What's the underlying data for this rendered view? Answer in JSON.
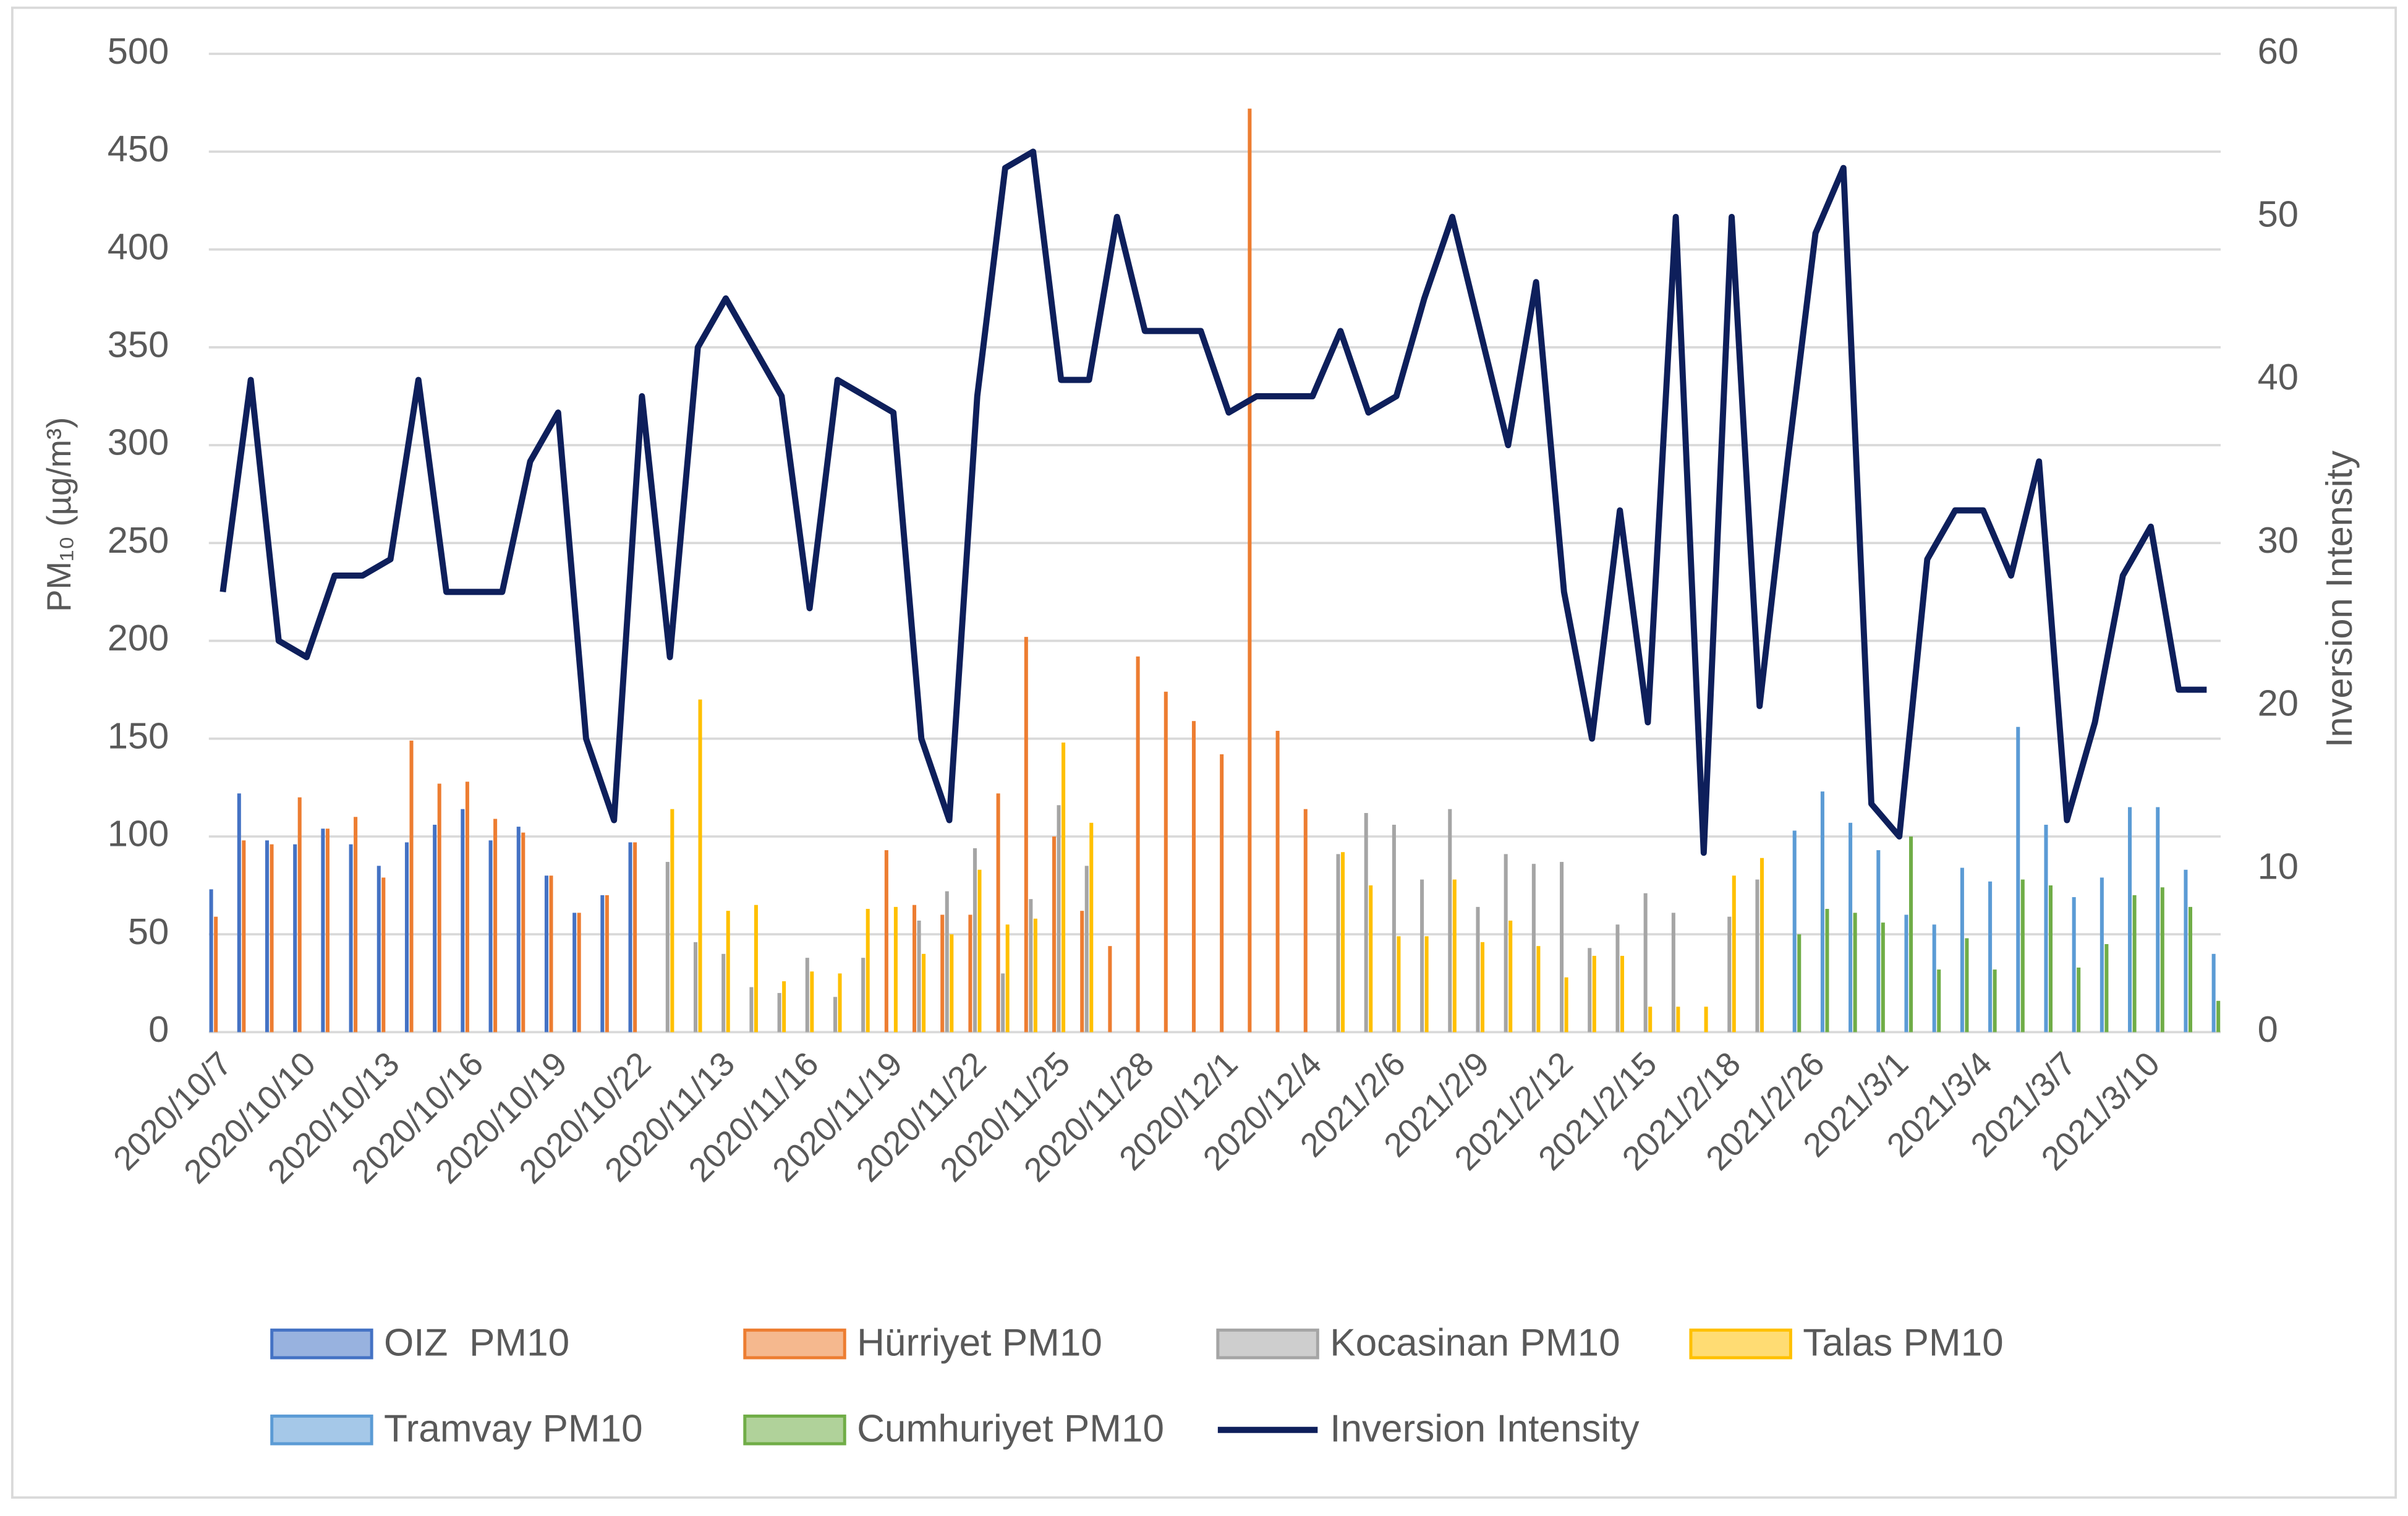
{
  "chart_data": {
    "type": "bar",
    "y_label": "PM₁₀ (µg/m³)",
    "y2_label": "Inversion Intensity",
    "categories": [
      "2020/10/7",
      null,
      null,
      "2020/10/10",
      null,
      null,
      "2020/10/13",
      null,
      null,
      "2020/10/16",
      null,
      null,
      "2020/10/19",
      null,
      null,
      "2020/10/22",
      null,
      null,
      "2020/11/13",
      null,
      null,
      "2020/11/16",
      null,
      null,
      "2020/11/19",
      null,
      null,
      "2020/11/22",
      null,
      null,
      "2020/11/25",
      null,
      null,
      "2020/11/28",
      null,
      null,
      "2020/12/1",
      null,
      null,
      "2020/12/4",
      null,
      null,
      "2021/2/6",
      null,
      null,
      "2021/2/9",
      null,
      null,
      "2021/2/12",
      null,
      null,
      "2021/2/15",
      null,
      null,
      "2021/2/18",
      null,
      null,
      "2021/2/26",
      null,
      null,
      "2021/3/1",
      null,
      null,
      "2021/3/4",
      null,
      null,
      "2021/3/7",
      null,
      null,
      "2021/3/10",
      null,
      null
    ],
    "ylim": [
      0,
      500
    ],
    "yticks": [
      0,
      50,
      100,
      150,
      200,
      250,
      300,
      350,
      400,
      450,
      500
    ],
    "y2lim": [
      0,
      60
    ],
    "y2ticks": [
      0,
      10,
      20,
      30,
      40,
      50,
      60
    ],
    "grid": true,
    "legend": "bottom",
    "series": [
      {
        "name": "OIZ  PM10",
        "color": "#4472c4",
        "values": [
          73,
          122,
          98,
          96,
          104,
          96,
          85,
          97,
          106,
          114,
          98,
          105,
          80,
          61,
          70,
          97,
          null,
          null,
          null,
          null,
          null,
          null,
          null,
          null,
          null,
          null,
          null,
          null,
          null,
          null,
          null,
          null,
          null,
          null,
          null,
          null,
          null,
          null,
          null,
          null,
          null,
          null,
          null,
          null,
          null,
          null,
          null,
          null,
          null,
          null,
          null,
          null,
          null,
          null,
          null,
          null,
          null,
          null,
          null,
          null,
          null,
          null,
          null,
          null,
          null,
          null,
          null,
          null,
          null,
          null,
          null,
          null
        ]
      },
      {
        "name": "Hürriyet PM10",
        "color": "#ed7d31",
        "values": [
          59,
          98,
          96,
          120,
          104,
          110,
          79,
          149,
          127,
          128,
          109,
          102,
          80,
          61,
          70,
          97,
          null,
          null,
          null,
          null,
          null,
          null,
          null,
          null,
          93,
          65,
          60,
          60,
          122,
          202,
          100,
          62,
          44,
          192,
          174,
          159,
          142,
          472,
          154,
          114,
          null,
          null,
          null,
          null,
          null,
          null,
          null,
          null,
          null,
          null,
          null,
          null,
          null,
          null,
          null,
          null,
          null,
          null,
          null,
          null,
          null,
          null,
          null,
          null,
          null,
          null,
          null,
          null,
          null,
          null,
          null,
          null
        ]
      },
      {
        "name": "Kocasinan PM10",
        "color": "#a5a5a5",
        "values": [
          null,
          null,
          null,
          null,
          null,
          null,
          null,
          null,
          null,
          null,
          null,
          null,
          null,
          null,
          null,
          null,
          87,
          46,
          40,
          23,
          20,
          38,
          18,
          38,
          null,
          57,
          72,
          94,
          30,
          68,
          116,
          85,
          null,
          null,
          null,
          null,
          null,
          null,
          null,
          null,
          91,
          112,
          106,
          78,
          114,
          64,
          91,
          86,
          87,
          43,
          55,
          71,
          61,
          null,
          59,
          78,
          null,
          null,
          null,
          null,
          null,
          null,
          null,
          null,
          null,
          null,
          null,
          null,
          null,
          null,
          null,
          null
        ]
      },
      {
        "name": "Talas PM10",
        "color": "#ffc000",
        "values": [
          null,
          null,
          null,
          null,
          null,
          null,
          null,
          null,
          null,
          null,
          null,
          null,
          null,
          null,
          null,
          null,
          114,
          170,
          62,
          65,
          26,
          31,
          30,
          63,
          64,
          40,
          50,
          83,
          55,
          58,
          148,
          107,
          null,
          null,
          null,
          null,
          null,
          null,
          null,
          null,
          92,
          75,
          49,
          49,
          78,
          46,
          57,
          44,
          28,
          39,
          39,
          13,
          13,
          13,
          80,
          89,
          null,
          null,
          null,
          null,
          null,
          null,
          null,
          null,
          null,
          null,
          null,
          null,
          null,
          null,
          null,
          null
        ]
      },
      {
        "name": "Tramvay PM10",
        "color": "#5b9bd5",
        "values": [
          null,
          null,
          null,
          null,
          null,
          null,
          null,
          null,
          null,
          null,
          null,
          null,
          null,
          null,
          null,
          null,
          null,
          null,
          null,
          null,
          null,
          null,
          null,
          null,
          null,
          null,
          null,
          null,
          null,
          null,
          null,
          null,
          null,
          null,
          null,
          null,
          null,
          null,
          null,
          null,
          null,
          null,
          null,
          null,
          null,
          null,
          null,
          null,
          null,
          null,
          null,
          null,
          null,
          null,
          null,
          null,
          103,
          123,
          107,
          93,
          60,
          55,
          84,
          77,
          156,
          106,
          69,
          79,
          115,
          115,
          83,
          40
        ]
      },
      {
        "name": "Cumhuriyet PM10",
        "color": "#70ad47",
        "values": [
          null,
          null,
          null,
          null,
          null,
          null,
          null,
          null,
          null,
          null,
          null,
          null,
          null,
          null,
          null,
          null,
          null,
          null,
          null,
          null,
          null,
          null,
          null,
          null,
          null,
          null,
          null,
          null,
          null,
          null,
          null,
          null,
          null,
          null,
          null,
          null,
          null,
          null,
          null,
          null,
          null,
          null,
          null,
          null,
          null,
          null,
          null,
          null,
          null,
          null,
          null,
          null,
          null,
          null,
          null,
          null,
          50,
          63,
          61,
          56,
          100,
          32,
          48,
          32,
          78,
          75,
          33,
          45,
          70,
          74,
          64,
          16
        ]
      },
      {
        "name": "Inversion Intensity",
        "type": "line",
        "axis": "y2",
        "color": "#0e1f5b",
        "values": [
          27,
          40,
          24,
          23,
          28,
          28,
          29,
          40,
          27,
          27,
          27,
          35,
          38,
          18,
          13,
          39,
          23,
          42,
          45,
          42,
          39,
          26,
          40,
          39,
          38,
          18,
          13,
          39,
          53,
          54,
          40,
          40,
          50,
          43,
          43,
          43,
          38,
          39,
          39,
          39,
          43,
          38,
          39,
          45,
          50,
          43,
          36,
          46,
          27,
          18,
          32,
          19,
          50,
          11,
          50,
          20,
          35,
          49,
          53,
          14,
          12,
          29,
          32,
          32,
          28,
          35,
          13,
          19,
          28,
          31,
          21,
          21
        ]
      }
    ]
  }
}
